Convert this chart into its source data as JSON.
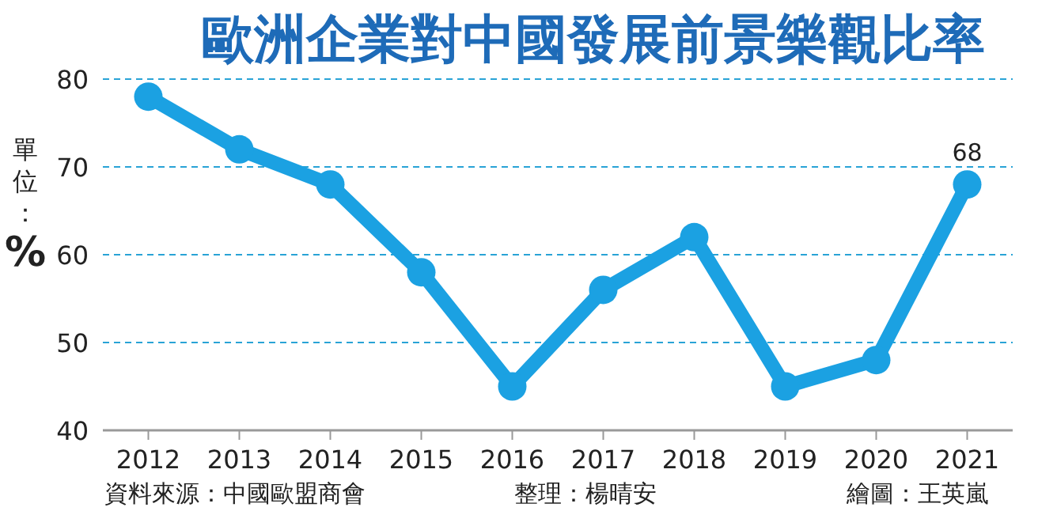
{
  "chart_data": {
    "type": "line",
    "title": "歐洲企業對中國發展前景樂觀比率",
    "ylabel": "單位：%",
    "categories": [
      "2012",
      "2013",
      "2014",
      "2015",
      "2016",
      "2017",
      "2018",
      "2019",
      "2020",
      "2021"
    ],
    "series": [
      {
        "color": "#1ba1e2",
        "values": [
          78,
          72,
          68,
          58,
          45,
          56,
          62,
          45,
          48,
          68
        ],
        "value_labels": [
          null,
          null,
          null,
          null,
          null,
          null,
          null,
          null,
          null,
          "68"
        ]
      }
    ],
    "ylim": [
      40,
      80
    ],
    "yticks": [
      40,
      50,
      60,
      70,
      80
    ],
    "grid": "y",
    "marker": "circle",
    "line_style": "solid",
    "annotations": [
      "資料來源：中國歐盟商會",
      "整理：楊晴安",
      "繪圖：王英嵐"
    ]
  }
}
